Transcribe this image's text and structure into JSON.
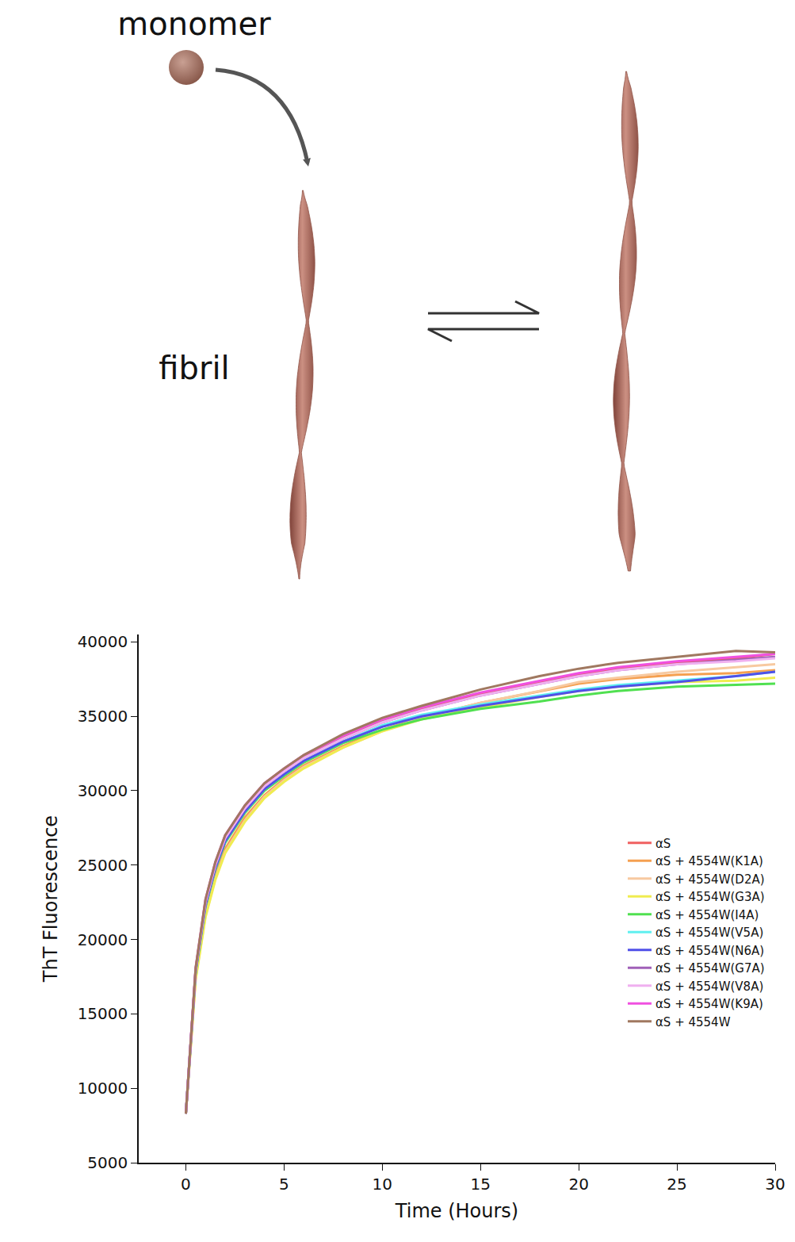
{
  "diagram": {
    "monomer_label": "monomer",
    "fibril_label": "fibril"
  },
  "chart_data": {
    "type": "line",
    "x_label": "Time (Hours)",
    "y_label": "ThT Fluorescence",
    "x": [
      0,
      0.5,
      1,
      1.5,
      2,
      3,
      4,
      5,
      6,
      8,
      10,
      12,
      15,
      18,
      20,
      22,
      25,
      28,
      30
    ],
    "xlim": [
      -2.4,
      30
    ],
    "xticks": [
      0,
      5,
      10,
      15,
      20,
      25,
      30
    ],
    "ylim": [
      5000,
      40500
    ],
    "yticks": [
      5000,
      10000,
      15000,
      20000,
      25000,
      30000,
      35000,
      40000
    ],
    "grid": false,
    "legend": "right",
    "series": [
      {
        "name": "αS",
        "color": "#f06060",
        "values": [
          8300,
          18000,
          22600,
          25100,
          26900,
          28900,
          30400,
          31400,
          32300,
          33600,
          34700,
          35500,
          36500,
          37300,
          37800,
          38200,
          38600,
          38900,
          39200
        ]
      },
      {
        "name": "αS + 4554W(K1A)",
        "color": "#f5a050",
        "values": [
          8300,
          17500,
          21800,
          24300,
          26100,
          28200,
          29700,
          30800,
          31700,
          33000,
          34100,
          34900,
          35900,
          36700,
          37200,
          37500,
          37800,
          37900,
          38100
        ]
      },
      {
        "name": "αS + 4554W(D2A)",
        "color": "#f7c9a0",
        "values": [
          8300,
          17400,
          21600,
          24100,
          25900,
          28000,
          29600,
          30700,
          31600,
          32900,
          34000,
          34900,
          35900,
          36700,
          37300,
          37600,
          38000,
          38300,
          38500
        ]
      },
      {
        "name": "αS + 4554W(G3A)",
        "color": "#f0ec50",
        "values": [
          8300,
          17300,
          21500,
          24000,
          25800,
          27900,
          29500,
          30600,
          31500,
          32900,
          34000,
          34800,
          35600,
          36300,
          36700,
          37000,
          37300,
          37400,
          37600
        ]
      },
      {
        "name": "αS + 4554W(I4A)",
        "color": "#50e050",
        "values": [
          8300,
          17800,
          22200,
          24700,
          26500,
          28500,
          30000,
          31000,
          31900,
          33200,
          34100,
          34800,
          35500,
          36000,
          36400,
          36700,
          37000,
          37100,
          37200
        ]
      },
      {
        "name": "αS + 4554W(V5A)",
        "color": "#60f0f0",
        "values": [
          8300,
          17900,
          22300,
          24800,
          26600,
          28600,
          30100,
          31100,
          32000,
          33300,
          34400,
          35100,
          35800,
          36400,
          36800,
          37100,
          37400,
          37700,
          38000
        ]
      },
      {
        "name": "αS + 4554W(N6A)",
        "color": "#5050e8",
        "values": [
          8300,
          17900,
          22300,
          24800,
          26600,
          28600,
          30100,
          31100,
          32000,
          33300,
          34300,
          35000,
          35700,
          36300,
          36700,
          37000,
          37300,
          37700,
          38000
        ]
      },
      {
        "name": "αS + 4554W(G7A)",
        "color": "#a060b8",
        "values": [
          8300,
          18000,
          22500,
          25000,
          26800,
          28800,
          30300,
          31300,
          32200,
          33500,
          34600,
          35400,
          36400,
          37200,
          37700,
          38100,
          38500,
          38800,
          39000
        ]
      },
      {
        "name": "αS + 4554W(V8A)",
        "color": "#f0b0f0",
        "values": [
          8300,
          18000,
          22500,
          25000,
          26800,
          28800,
          30300,
          31300,
          32200,
          33500,
          34600,
          35400,
          36400,
          37200,
          37700,
          38100,
          38500,
          38700,
          38900
        ]
      },
      {
        "name": "αS + 4554W(K9A)",
        "color": "#f050e0",
        "values": [
          8300,
          18100,
          22700,
          25200,
          27000,
          29000,
          30500,
          31500,
          32400,
          33700,
          34800,
          35600,
          36600,
          37400,
          37900,
          38300,
          38700,
          39000,
          39200
        ]
      },
      {
        "name": "αS + 4554W",
        "color": "#a07860",
        "values": [
          8300,
          18100,
          22700,
          25200,
          27000,
          29000,
          30500,
          31500,
          32400,
          33800,
          34900,
          35700,
          36800,
          37700,
          38200,
          38600,
          39000,
          39400,
          39300
        ]
      }
    ]
  }
}
